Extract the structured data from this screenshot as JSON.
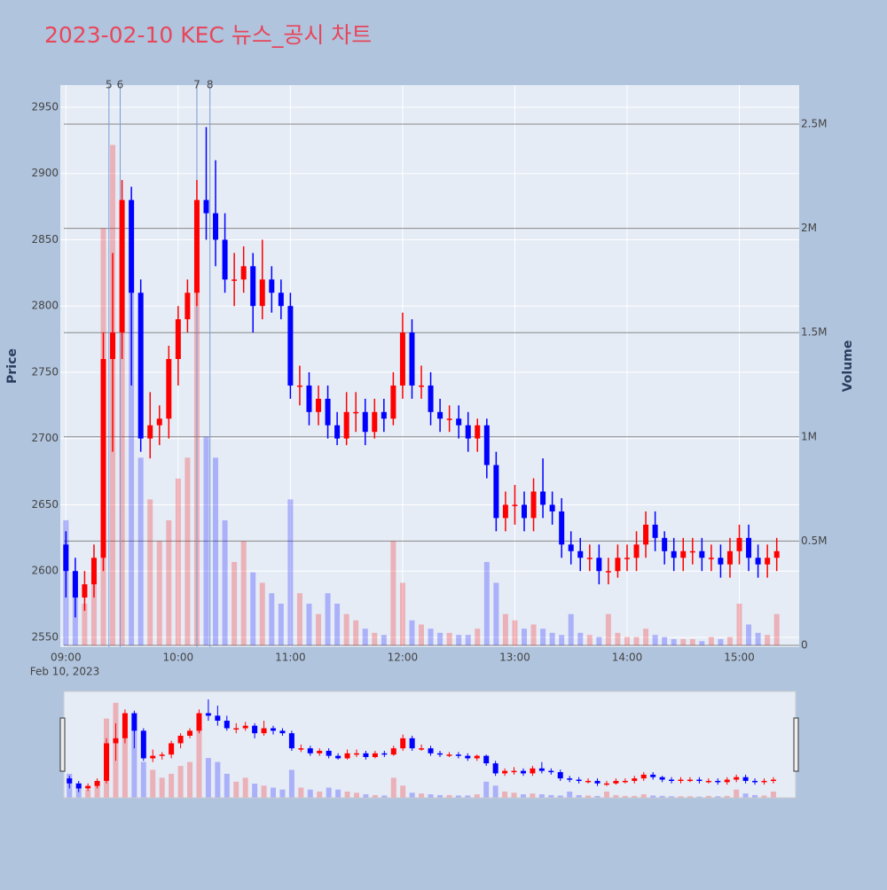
{
  "chart_data": {
    "type": "candlestick",
    "title": "2023-02-10 KEC 뉴스_공시 차트",
    "y_label": "Price",
    "y2_label": "Volume",
    "x_date_label": "Feb 10, 2023",
    "up_color": "#ff0000",
    "down_color": "#0000ff",
    "grid": true,
    "x": [
      "09:00",
      "09:05",
      "09:10",
      "09:15",
      "09:20",
      "09:25",
      "09:30",
      "09:35",
      "09:40",
      "09:45",
      "09:50",
      "09:55",
      "10:00",
      "10:05",
      "10:10",
      "10:15",
      "10:20",
      "10:25",
      "10:30",
      "10:35",
      "10:40",
      "10:45",
      "10:50",
      "10:55",
      "11:00",
      "11:05",
      "11:10",
      "11:15",
      "11:20",
      "11:25",
      "11:30",
      "11:35",
      "11:40",
      "11:45",
      "11:50",
      "11:55",
      "12:00",
      "12:05",
      "12:10",
      "12:15",
      "12:20",
      "12:25",
      "12:30",
      "12:35",
      "12:40",
      "12:45",
      "12:50",
      "12:55",
      "13:00",
      "13:05",
      "13:10",
      "13:15",
      "13:20",
      "13:25",
      "13:30",
      "13:35",
      "13:40",
      "13:45",
      "13:50",
      "13:55",
      "14:00",
      "14:05",
      "14:10",
      "14:15",
      "14:20",
      "14:25",
      "14:30",
      "14:35",
      "14:40",
      "14:45",
      "14:50",
      "14:55",
      "15:00",
      "15:05",
      "15:10",
      "15:15",
      "15:20"
    ],
    "open": [
      2620,
      2600,
      2580,
      2590,
      2610,
      2760,
      2780,
      2880,
      2810,
      2700,
      2710,
      2715,
      2760,
      2790,
      2810,
      2880,
      2870,
      2850,
      2820,
      2820,
      2830,
      2800,
      2820,
      2810,
      2800,
      2740,
      2740,
      2720,
      2730,
      2710,
      2700,
      2720,
      2720,
      2705,
      2720,
      2715,
      2740,
      2780,
      2740,
      2740,
      2720,
      2715,
      2715,
      2710,
      2700,
      2710,
      2680,
      2640,
      2650,
      2650,
      2640,
      2660,
      2650,
      2645,
      2620,
      2615,
      2610,
      2610,
      2600,
      2600,
      2610,
      2610,
      2620,
      2635,
      2625,
      2615,
      2610,
      2615,
      2615,
      2610,
      2610,
      2605,
      2615,
      2625,
      2610,
      2605,
      2610
    ],
    "high": [
      2630,
      2610,
      2600,
      2620,
      2780,
      2840,
      2895,
      2890,
      2820,
      2735,
      2725,
      2770,
      2800,
      2820,
      2895,
      2935,
      2910,
      2870,
      2840,
      2845,
      2840,
      2850,
      2830,
      2820,
      2810,
      2755,
      2750,
      2740,
      2740,
      2720,
      2735,
      2735,
      2730,
      2730,
      2730,
      2750,
      2795,
      2790,
      2755,
      2750,
      2730,
      2725,
      2725,
      2720,
      2715,
      2715,
      2690,
      2660,
      2665,
      2660,
      2670,
      2685,
      2660,
      2655,
      2630,
      2625,
      2620,
      2620,
      2610,
      2620,
      2620,
      2630,
      2645,
      2645,
      2630,
      2625,
      2625,
      2625,
      2625,
      2620,
      2620,
      2625,
      2635,
      2635,
      2620,
      2620,
      2625
    ],
    "low": [
      2580,
      2565,
      2570,
      2580,
      2600,
      2690,
      2760,
      2740,
      2690,
      2685,
      2695,
      2700,
      2740,
      2780,
      2800,
      2850,
      2830,
      2810,
      2800,
      2810,
      2780,
      2790,
      2795,
      2790,
      2730,
      2725,
      2710,
      2710,
      2700,
      2695,
      2695,
      2705,
      2695,
      2700,
      2705,
      2710,
      2730,
      2730,
      2730,
      2710,
      2705,
      2705,
      2700,
      2690,
      2690,
      2670,
      2630,
      2630,
      2635,
      2630,
      2630,
      2640,
      2635,
      2610,
      2605,
      2600,
      2600,
      2590,
      2590,
      2595,
      2600,
      2600,
      2610,
      2615,
      2605,
      2600,
      2600,
      2605,
      2600,
      2600,
      2595,
      2595,
      2605,
      2600,
      2595,
      2595,
      2600
    ],
    "close": [
      2600,
      2580,
      2590,
      2610,
      2760,
      2780,
      2880,
      2810,
      2700,
      2710,
      2715,
      2760,
      2790,
      2810,
      2880,
      2870,
      2850,
      2820,
      2820,
      2830,
      2800,
      2820,
      2810,
      2800,
      2740,
      2740,
      2720,
      2730,
      2710,
      2700,
      2720,
      2720,
      2705,
      2720,
      2715,
      2740,
      2780,
      2740,
      2740,
      2720,
      2715,
      2715,
      2710,
      2700,
      2710,
      2680,
      2640,
      2650,
      2650,
      2640,
      2660,
      2650,
      2645,
      2620,
      2615,
      2610,
      2610,
      2600,
      2600,
      2610,
      2610,
      2620,
      2635,
      2625,
      2615,
      2610,
      2615,
      2615,
      2610,
      2610,
      2605,
      2615,
      2625,
      2610,
      2605,
      2610,
      2615
    ],
    "volume": [
      600000,
      300000,
      200000,
      400000,
      2000000,
      2400000,
      1500000,
      1800000,
      900000,
      700000,
      500000,
      600000,
      800000,
      900000,
      1800000,
      1000000,
      900000,
      600000,
      400000,
      500000,
      350000,
      300000,
      250000,
      200000,
      700000,
      250000,
      200000,
      150000,
      250000,
      200000,
      150000,
      120000,
      80000,
      60000,
      50000,
      500000,
      300000,
      120000,
      100000,
      80000,
      60000,
      60000,
      50000,
      50000,
      80000,
      400000,
      300000,
      150000,
      120000,
      80000,
      100000,
      80000,
      60000,
      50000,
      150000,
      60000,
      50000,
      40000,
      150000,
      60000,
      40000,
      40000,
      80000,
      50000,
      40000,
      30000,
      30000,
      30000,
      20000,
      40000,
      30000,
      40000,
      200000,
      100000,
      60000,
      50000,
      150000
    ],
    "xlim": [
      "08:57",
      "15:32"
    ],
    "xticks": [
      "09:00",
      "10:00",
      "11:00",
      "12:00",
      "13:00",
      "14:00",
      "15:00"
    ],
    "ylim": [
      2542.6,
      2966.7
    ],
    "yticks": [
      2550,
      2600,
      2650,
      2700,
      2750,
      2800,
      2850,
      2900,
      2950
    ],
    "y2lim": [
      -8500,
      2687000
    ],
    "y2ticks": [
      0,
      {
        "value": 500000,
        "label": "0.5M"
      },
      {
        "value": 1000000,
        "label": "1M"
      },
      {
        "value": 1500000,
        "label": "1.5M"
      },
      {
        "value": 2000000,
        "label": "2M"
      },
      {
        "value": 2500000,
        "label": "2.5M"
      }
    ],
    "annotations": [
      {
        "x": "09:23",
        "label": "5"
      },
      {
        "x": "09:29",
        "label": "6"
      },
      {
        "x": "10:10",
        "label": "7"
      },
      {
        "x": "10:17",
        "label": "8"
      }
    ]
  }
}
